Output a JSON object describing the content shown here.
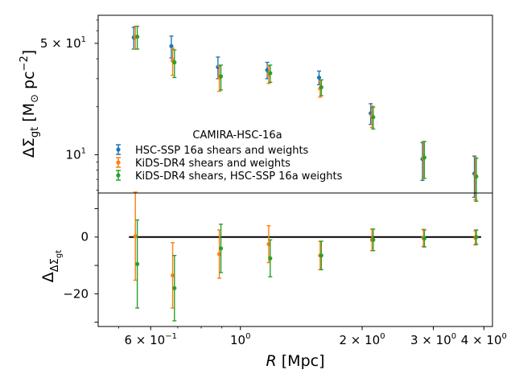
{
  "chart_data": [
    {
      "type": "scatter",
      "panel": "top",
      "xscale": "log",
      "yscale": "log",
      "xlim": [
        0.445,
        4.2
      ],
      "ylim": [
        5.75,
        75
      ],
      "ylabel": "ΔΣ_gt [M_⊙ pc⁻²]",
      "ylabel_parts": {
        "main": "ΔΣ",
        "sub": "gt",
        "open": " [M",
        "odot": "⊙",
        "unit": " pc",
        "sup": "−2",
        "close": "]"
      },
      "yticks": [
        {
          "value": 10,
          "label": "10",
          "sup": "1",
          "label_scale": "10¹"
        },
        {
          "value": 50,
          "label": "5 × 10",
          "sup": "1",
          "label_scale": "5 × 10¹"
        }
      ],
      "legend_title": "CAMIRA-HSC-16a",
      "legend_position": "lower-left",
      "series": [
        {
          "name": "HSC-SSP 16a shears and weights",
          "color": "#1f77b4",
          "x": [
            0.545,
            0.675,
            0.88,
            1.165,
            1.565,
            2.1,
            2.82,
            3.79
          ],
          "y": [
            54.5,
            48.0,
            35.5,
            34.0,
            30.5,
            18.2,
            9.4,
            7.6
          ],
          "yerr_low": [
            8.5,
            7.5,
            5.5,
            4.0,
            3.0,
            2.7,
            2.5,
            2.2
          ],
          "yerr_high": [
            8.5,
            7.5,
            5.5,
            4.0,
            3.0,
            2.7,
            2.5,
            2.2
          ]
        },
        {
          "name": "KiDS-DR4 shears and weights",
          "color": "#ff7f0e",
          "x": [
            0.55,
            0.68,
            0.887,
            1.175,
            1.575,
            2.115,
            2.835,
            3.81
          ],
          "y": [
            55.0,
            39.0,
            30.5,
            32.0,
            26.0,
            17.5,
            9.6,
            7.4
          ],
          "yerr_low": [
            9.0,
            7.5,
            5.5,
            4.0,
            3.0,
            2.7,
            2.5,
            2.2
          ],
          "yerr_high": [
            9.0,
            7.5,
            5.5,
            4.0,
            3.0,
            2.7,
            2.5,
            2.2
          ]
        },
        {
          "name": "KiDS-DR4 shears, HSC-SSP 16a weights",
          "color": "#2ca02c",
          "x": [
            0.556,
            0.687,
            0.895,
            1.185,
            1.585,
            2.13,
            2.85,
            3.83
          ],
          "y": [
            55.0,
            38.0,
            31.0,
            32.5,
            26.5,
            17.2,
            9.6,
            7.3
          ],
          "yerr_low": [
            9.0,
            7.5,
            5.5,
            4.0,
            3.0,
            2.7,
            2.5,
            2.2
          ],
          "yerr_high": [
            9.0,
            7.5,
            5.5,
            4.0,
            3.0,
            2.7,
            2.5,
            2.2
          ]
        }
      ]
    },
    {
      "type": "scatter",
      "panel": "bottom",
      "xscale": "log",
      "yscale": "linear",
      "xlim": [
        0.445,
        4.2
      ],
      "ylim": [
        -31.5,
        15.5
      ],
      "ylabel": "Δ_ΔΣgt",
      "ylabel_parts": {
        "main": "Δ",
        "sub": "ΔΣ",
        "subsub": "gt"
      },
      "xlabel": "R [Mpc]",
      "xlabel_parts": {
        "var": "R",
        "unit": " [Mpc]"
      },
      "reference_line": 0,
      "yticks": [
        {
          "value": -20,
          "label": "−20"
        },
        {
          "value": 0,
          "label": "0"
        }
      ],
      "xticks": [
        {
          "value": 0.6,
          "label": "6 × 10",
          "sup": "−1"
        },
        {
          "value": 1,
          "label": "10",
          "sup": "0"
        },
        {
          "value": 2,
          "label": "2 × 10",
          "sup": "0"
        },
        {
          "value": 3,
          "label": "3 × 10",
          "sup": "0"
        },
        {
          "value": 4,
          "label": "4 × 10",
          "sup": "0"
        }
      ],
      "series": [
        {
          "name": "KiDS-DR4 shears and weights",
          "color": "#ff7f0e",
          "x": [
            0.55,
            0.68,
            0.887,
            1.175,
            1.575,
            2.115,
            2.835,
            3.81
          ],
          "y": [
            0.3,
            -13.5,
            -6.0,
            -2.5,
            -6.5,
            -1.0,
            -0.3,
            -0.3
          ],
          "yerr_low": [
            15.5,
            11.5,
            8.5,
            6.5,
            5.0,
            3.8,
            3.0,
            2.5
          ],
          "yerr_high": [
            15.5,
            11.5,
            8.5,
            6.5,
            5.0,
            3.8,
            3.0,
            2.5
          ]
        },
        {
          "name": "KiDS-DR4 shears, HSC-SSP 16a weights",
          "color": "#2ca02c",
          "x": [
            0.556,
            0.687,
            0.895,
            1.185,
            1.585,
            2.13,
            2.85,
            3.83
          ],
          "y": [
            -9.5,
            -18.0,
            -4.0,
            -7.5,
            -6.5,
            -1.0,
            -0.5,
            0.0
          ],
          "yerr_low": [
            15.5,
            11.5,
            8.5,
            6.5,
            5.0,
            3.8,
            3.0,
            2.5
          ],
          "yerr_high": [
            15.5,
            11.5,
            8.5,
            6.5,
            5.0,
            3.8,
            3.0,
            2.5
          ]
        }
      ]
    }
  ]
}
